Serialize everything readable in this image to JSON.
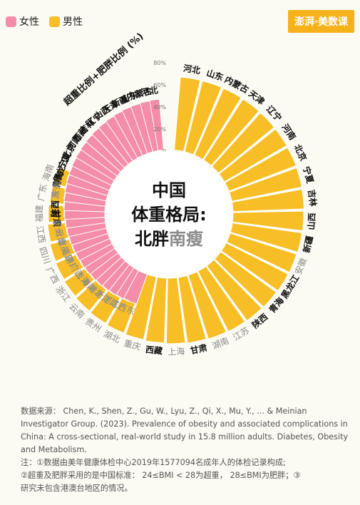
{
  "legend": {
    "female_label": "女性",
    "male_label": "男性",
    "female_color": "#f38da8",
    "male_color": "#f7be25"
  },
  "brand": {
    "label": "澎湃·美数课",
    "color": "#f6b21b"
  },
  "center_title": {
    "line1": "中国",
    "line2": "体重格局:",
    "line3_a": "北胖",
    "line3_b": "南瘦"
  },
  "notes": {
    "source": "数据来源： Chen, K., Shen, Z., Gu, W., Lyu, Z., Qi, X., Mu, Y., ... & Meinian Investigator Group. (2023). Prevalence of obesity and associated complications in China: A cross-sectional, real-world study in 15.8 million adults. Diabetes, Obesity and Metabolism.",
    "note1": "注：①数据由美年健康体检中心2019年1577094名成年人的体检记录构成;",
    "note2": "②超重及肥胖采用的是中国标准： 24≤BMI < 28为超重， 28≤BMI为肥胖；③",
    "note3": "研究未包含港澳台地区的情况。"
  },
  "chart_data": {
    "type": "bar",
    "layout": "radial",
    "ylabel": "超重比例+肥胖比例 (%)",
    "ylim": [
      0,
      80
    ],
    "yticks": [
      "0",
      "20%",
      "40%",
      "60%",
      "80%"
    ],
    "series": [
      {
        "name": "男性",
        "color": "#f7be25",
        "categories": [
          "河北",
          "山东",
          "内蒙古",
          "天津",
          "辽宁",
          "河南",
          "北京",
          "宁夏",
          "吉林",
          "山西",
          "新疆",
          "安徽",
          "黑龙江",
          "青海",
          "陕西",
          "江苏",
          "湖南",
          "甘肃",
          "上海",
          "西藏",
          "重庆",
          "湖北",
          "贵州",
          "云南",
          "浙江",
          "广西",
          "四川",
          "江西",
          "福建",
          "广东",
          "海南"
        ],
        "values": [
          67.5,
          67.3,
          67.1,
          66.9,
          66.7,
          66.5,
          66.3,
          66.0,
          65.6,
          65.2,
          64.8,
          64.3,
          63.9,
          63.4,
          62.9,
          62.4,
          61.8,
          61.2,
          60.6,
          59.9,
          59.1,
          58.3,
          57.5,
          56.7,
          55.9,
          55.0,
          54.2,
          53.3,
          52.4,
          51.5,
          50.6
        ]
      },
      {
        "name": "女性",
        "color": "#f38da8",
        "categories": [
          "河北",
          "内蒙古",
          "山东",
          "新疆",
          "天津",
          "山西",
          "辽宁",
          "吉林",
          "西藏",
          "河南",
          "北京",
          "宁夏",
          "黑龙江",
          "青海",
          "安徽",
          "江苏",
          "陕西",
          "甘肃",
          "贵州",
          "云南",
          "重庆",
          "福建",
          "四川",
          "广西",
          "上海",
          "海南",
          "湖北",
          "浙江",
          "湖南",
          "江西",
          "广东"
        ],
        "values": [
          47.5,
          47.0,
          46.5,
          46.0,
          45.4,
          44.8,
          44.2,
          43.6,
          43.0,
          42.4,
          41.8,
          41.2,
          40.6,
          40.0,
          39.4,
          38.8,
          38.2,
          37.6,
          37.0,
          36.4,
          35.8,
          35.2,
          34.6,
          34.0,
          33.4,
          32.8,
          32.2,
          31.6,
          31.0,
          30.4,
          29.8
        ]
      }
    ],
    "north_provinces": [
      "河北",
      "山东",
      "内蒙古",
      "天津",
      "辽宁",
      "河南",
      "北京",
      "宁夏",
      "吉林",
      "山西",
      "新疆",
      "黑龙江",
      "青海",
      "陕西",
      "甘肃",
      "西藏"
    ]
  }
}
